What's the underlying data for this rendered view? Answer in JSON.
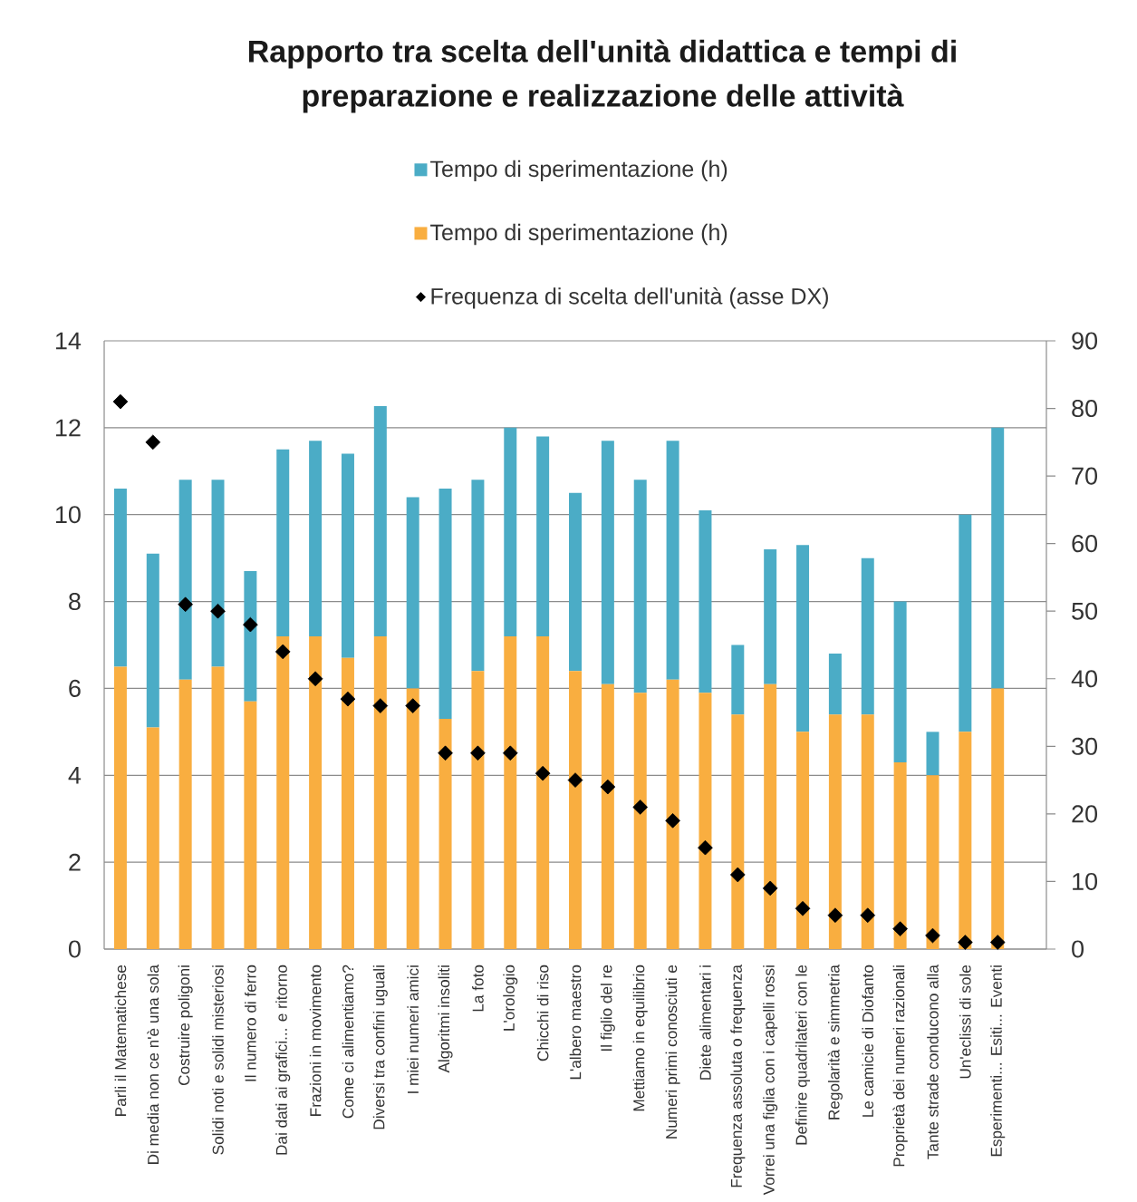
{
  "chart_data": {
    "type": "bar",
    "title": "Rapporto tra scelta dell'unità didattica e tempi di preparazione e realizzazione delle attività",
    "stacked": true,
    "categories": [
      "Parli il Matematichese",
      "Di media non ce n'è una sola",
      "Costruire poligoni",
      "Solidi noti e solidi misteriosi",
      "Il numero di ferro",
      "Dai dati ai grafici... e ritorno",
      "Frazioni in movimento",
      "Come ci alimentiamo?",
      "Diversi tra confini uguali",
      "I miei numeri amici",
      "Algoritmi insoliti",
      "La foto",
      "L'orologio",
      "Chicchi di riso",
      "L'albero maestro",
      "Il figlio del re",
      "Mettiamo in equilibrio",
      "Numeri primi conosciuti e",
      "Diete alimentari i",
      "Frequenza assoluta o frequenza",
      "Vorrei una figlia con i capelli rossi",
      "Definire quadrilateri con le",
      "Regolarità e simmetria",
      "Le camicie di Diofanto",
      "Proprietà dei numeri razionali",
      "Tante strade conducono alla",
      "Un'eclissi di sole",
      "Esperimenti... Esiti... Eventi",
      null
    ],
    "series": [
      {
        "name": "Tempo di sperimentazione (h)",
        "color": "#f9ae40",
        "values": [
          6.5,
          5.1,
          6.2,
          6.5,
          5.7,
          7.2,
          7.2,
          6.7,
          7.2,
          6.0,
          5.3,
          6.4,
          7.2,
          7.2,
          6.4,
          6.1,
          5.9,
          6.2,
          5.9,
          5.4,
          6.1,
          5.0,
          5.4,
          5.4,
          4.3,
          4.0,
          5.0,
          6.0,
          null
        ]
      },
      {
        "name": "Tempo di sperimentazione (h)",
        "color": "#4bacc6",
        "values": [
          4.1,
          4.0,
          4.6,
          4.3,
          3.0,
          4.3,
          4.5,
          4.7,
          5.3,
          4.4,
          5.3,
          4.4,
          4.8,
          4.6,
          4.1,
          5.6,
          4.9,
          5.5,
          4.2,
          1.6,
          3.1,
          4.3,
          1.4,
          3.6,
          3.7,
          1.0,
          5.0,
          6.0,
          null
        ]
      },
      {
        "name": "Frequenza di scelta dell'unità (asse DX)",
        "type": "scatter",
        "axis": "y2",
        "marker": "diamond",
        "color": "#000000",
        "values": [
          81,
          75,
          51,
          50,
          48,
          44,
          40,
          37,
          36,
          36,
          29,
          29,
          29,
          26,
          25,
          24,
          21,
          19,
          15,
          11,
          9,
          6,
          5,
          5,
          3,
          2,
          1,
          1,
          null
        ]
      }
    ],
    "ylim": [
      0,
      14
    ],
    "yticks": [
      0,
      2,
      4,
      6,
      8,
      10,
      12,
      14
    ],
    "y2lim": [
      0,
      90
    ],
    "y2ticks": [
      0,
      10,
      20,
      30,
      40,
      50,
      60,
      70,
      80,
      90
    ],
    "grid": "y",
    "legend": "top"
  }
}
